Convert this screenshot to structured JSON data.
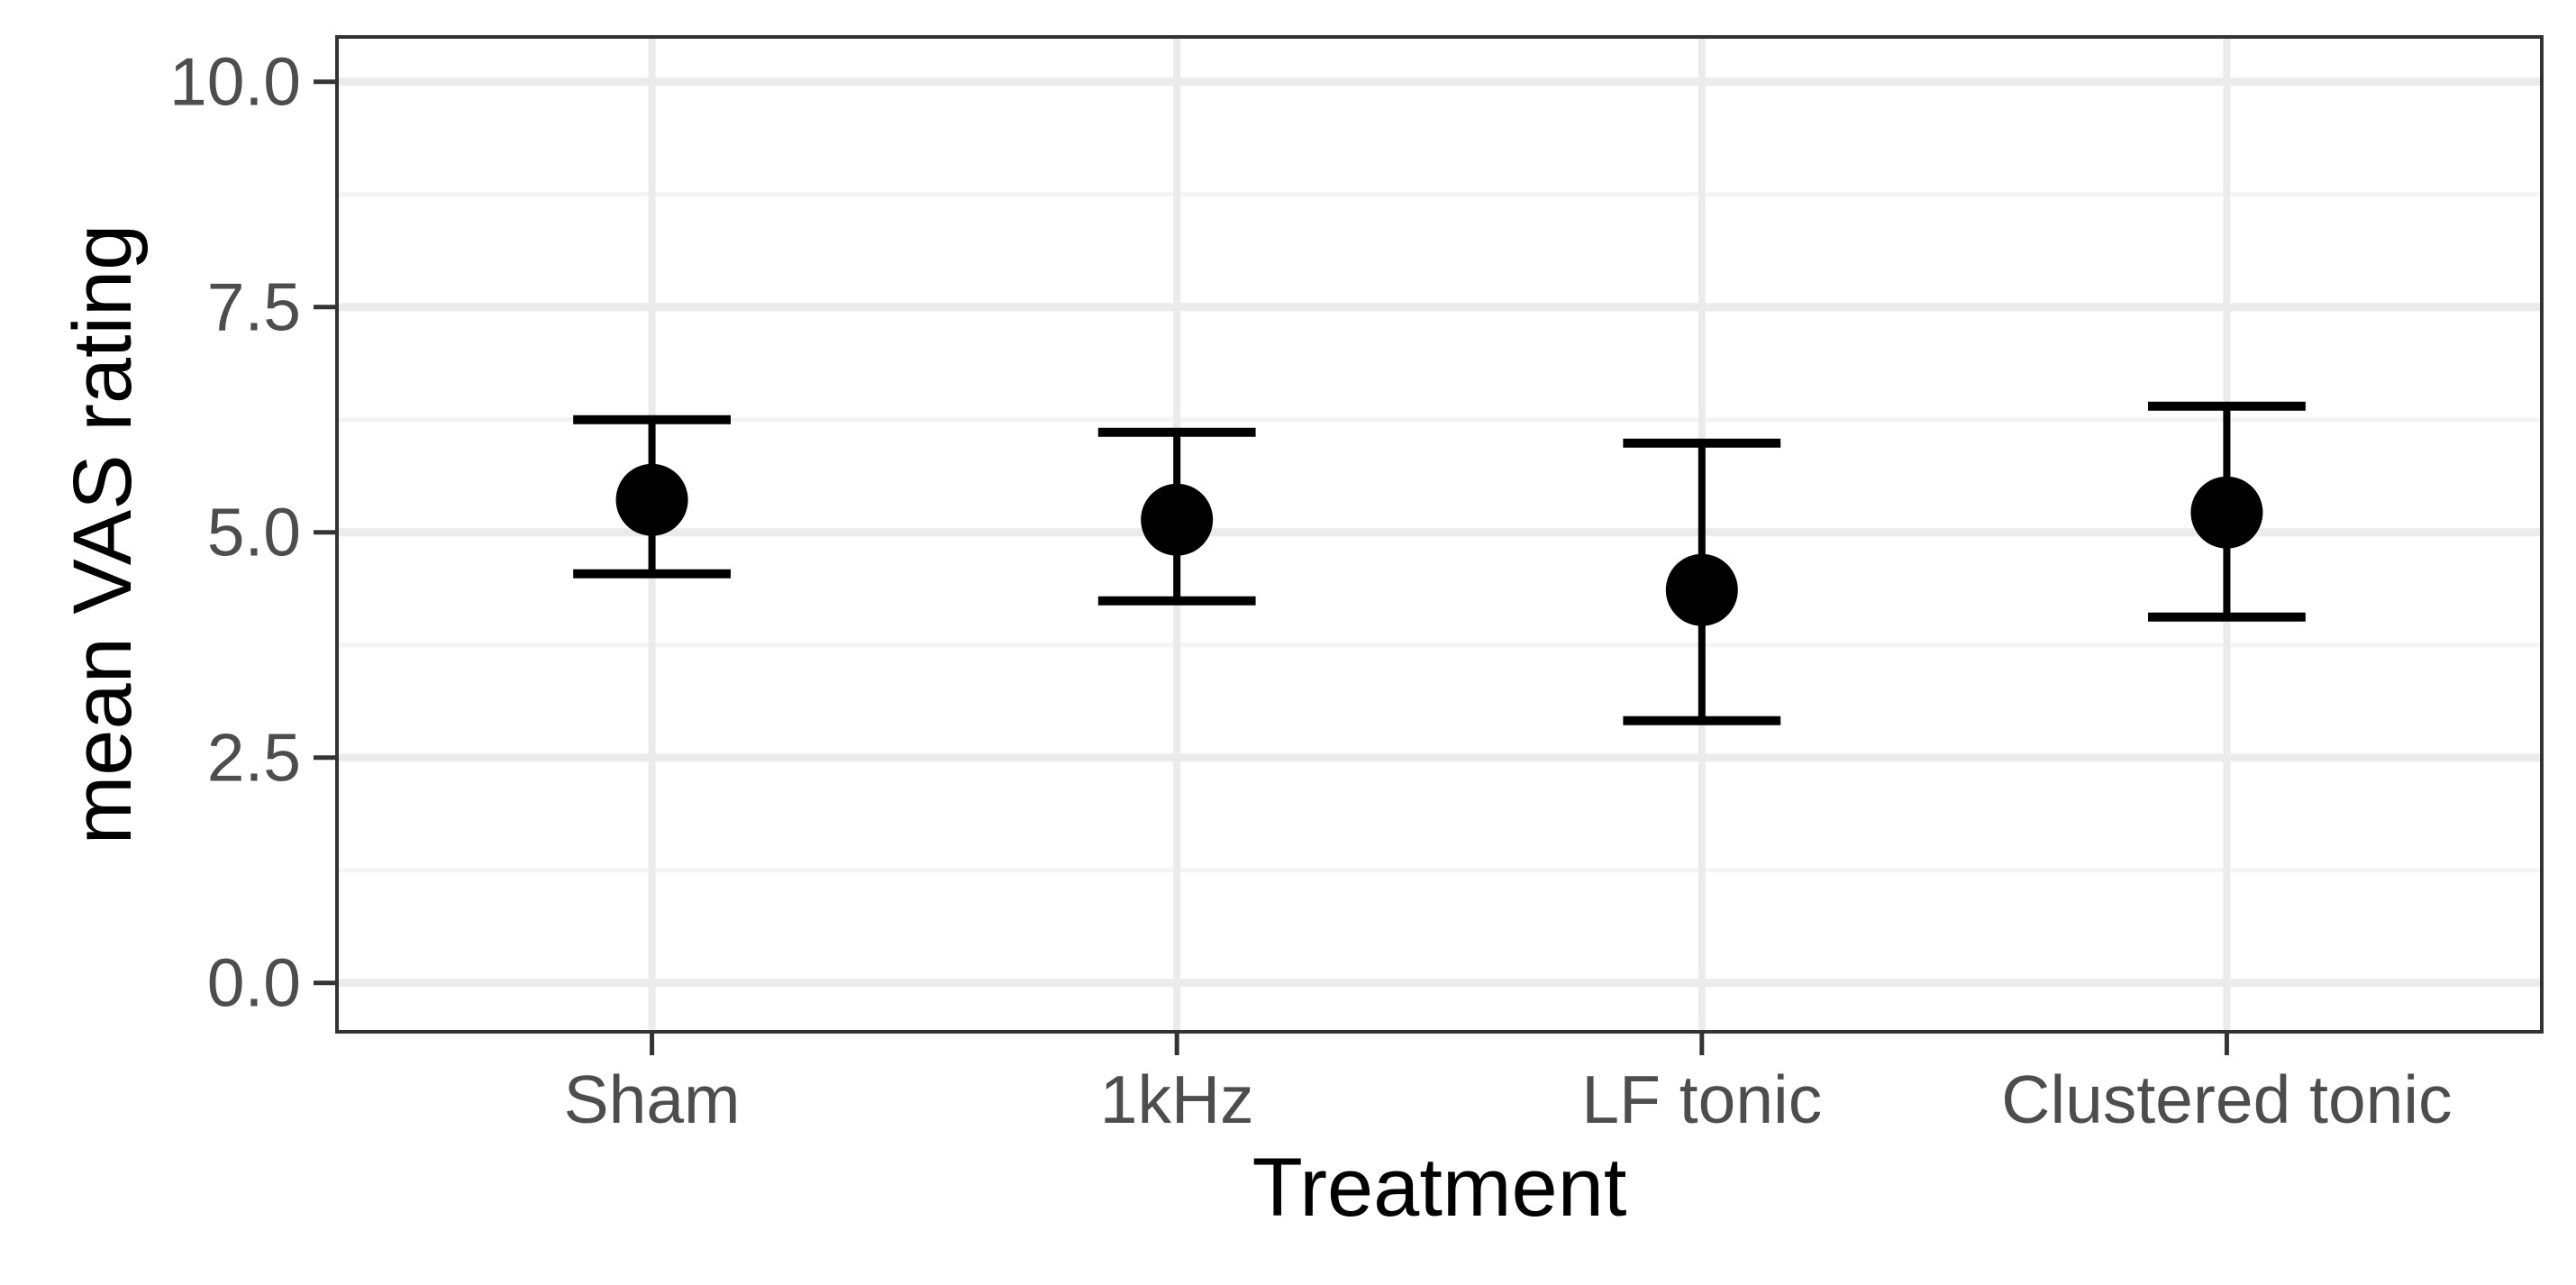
{
  "chart_data": {
    "type": "scatter",
    "subtype": "pointrange-errorbar",
    "title": "",
    "xlabel": "Treatment",
    "ylabel": "mean VAS rating",
    "categories": [
      "Sham",
      "1kHz",
      "LF tonic",
      "Clustered tonic"
    ],
    "series": [
      {
        "name": "mean VAS rating",
        "values": [
          5.36,
          5.14,
          4.36,
          5.22
        ],
        "error_low": [
          4.54,
          4.24,
          2.91,
          4.06
        ],
        "error_high": [
          6.25,
          6.11,
          5.99,
          6.4
        ]
      }
    ],
    "ylim": [
      -0.543,
      10.497
    ],
    "y_ticks": [
      0.0,
      2.5,
      5.0,
      7.5,
      10.0
    ],
    "y_tick_labels": [
      "0.0",
      "2.5",
      "5.0",
      "7.5",
      "10.0"
    ],
    "y_minor_gridlines": [
      1.25,
      3.75,
      6.25,
      8.75
    ],
    "grid": "major+minor horizontal, major vertical at categories",
    "legend": "none",
    "marker": "filled-circle",
    "errorbar_cap_width_fraction": 0.3
  },
  "colors": {
    "background": "#ffffff",
    "panel_background": "#ffffff",
    "panel_border": "#333333",
    "grid_major": "#ebebeb",
    "grid_minor": "#f4f4f4",
    "point": "#000000",
    "errorbar": "#000000",
    "tick_mark": "#333333",
    "tick_label": "#4d4d4d",
    "axis_title": "#000000"
  }
}
